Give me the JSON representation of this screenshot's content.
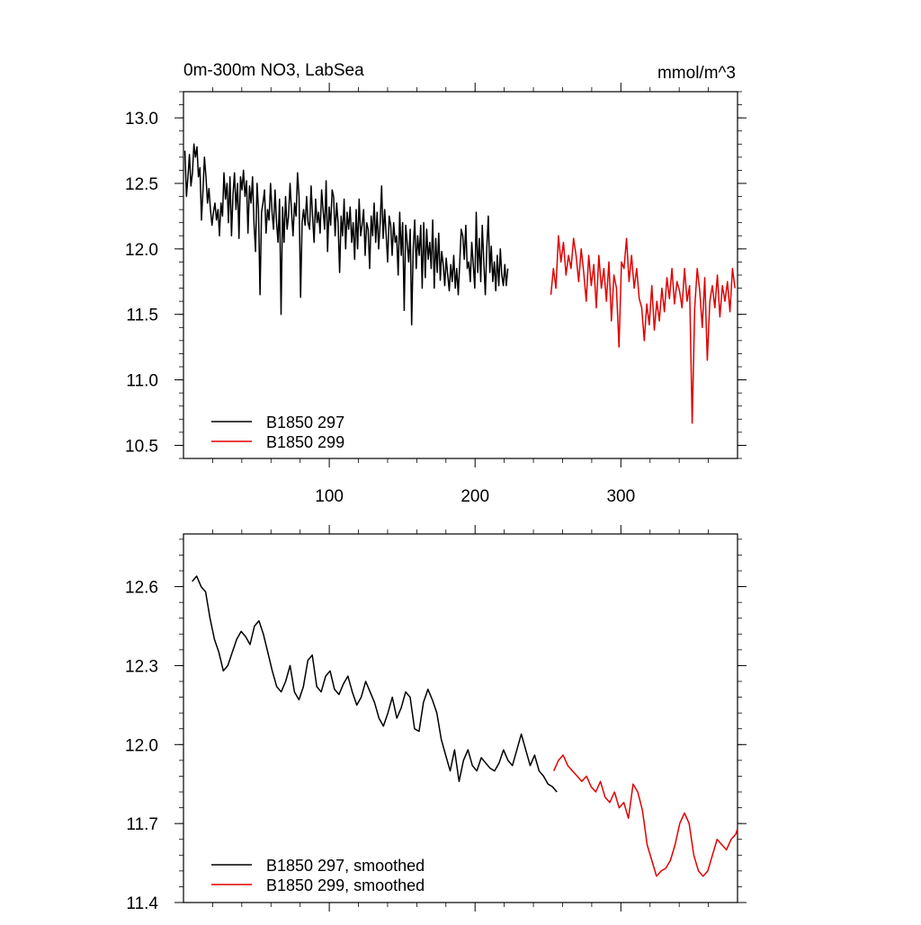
{
  "chart_data": [
    {
      "type": "line",
      "title": "0m-300m NO3, LabSea",
      "units": "mmol/m^3",
      "xlim": [
        0,
        380
      ],
      "ylim": [
        10.4,
        13.2
      ],
      "xticks": [
        100,
        200,
        300
      ],
      "xtick_labels": [
        "100",
        "200",
        "300"
      ],
      "yticks": [
        10.5,
        11.0,
        11.5,
        12.0,
        12.5,
        13.0
      ],
      "ytick_labels": [
        "10.5",
        "11.0",
        "11.5",
        "12.0",
        "12.5",
        "13.0"
      ],
      "legend_location": "bottom-left",
      "series": [
        {
          "name": "B1850 297",
          "color": "#000000",
          "x_start": 1,
          "values": [
            12.75,
            12.4,
            12.55,
            12.72,
            12.48,
            12.58,
            12.8,
            12.7,
            12.78,
            12.55,
            12.62,
            12.22,
            12.45,
            12.7,
            12.55,
            12.35,
            12.46,
            12.3,
            12.18,
            12.28,
            12.35,
            12.22,
            12.3,
            12.1,
            12.35,
            12.25,
            12.58,
            12.38,
            12.5,
            12.2,
            12.55,
            12.1,
            12.42,
            12.58,
            12.3,
            12.5,
            12.08,
            12.55,
            12.45,
            12.6,
            12.4,
            12.52,
            12.12,
            12.48,
            12.35,
            12.55,
            12.2,
            11.98,
            12.5,
            12.3,
            11.65,
            12.28,
            12.35,
            12.45,
            12.12,
            12.3,
            12.22,
            12.5,
            12.28,
            12.15,
            12.45,
            12.2,
            12.05,
            12.38,
            11.5,
            12.32,
            12.05,
            12.4,
            12.15,
            12.25,
            12.5,
            12.28,
            12.1,
            12.35,
            12.25,
            12.58,
            12.4,
            11.63,
            12.2,
            12.3,
            12.18,
            12.4,
            12.2,
            12.15,
            12.48,
            12.25,
            12.05,
            12.38,
            12.2,
            12.28,
            12.12,
            12.45,
            12.3,
            12.15,
            12.52,
            11.98,
            12.32,
            12.18,
            12.45,
            12.4,
            12.1,
            12.35,
            12.2,
            11.82,
            12.25,
            12.1,
            12.38,
            12.0,
            12.28,
            12.15,
            12.32,
            12.05,
            12.2,
            11.92,
            12.3,
            12.0,
            12.38,
            12.1,
            12.18,
            12.3,
            11.95,
            12.2,
            12.15,
            11.85,
            12.25,
            12.1,
            12.35,
            12.05,
            12.28,
            12.0,
            12.2,
            12.48,
            12.08,
            12.3,
            12.1,
            11.9,
            12.25,
            12.18,
            11.95,
            12.2,
            12.05,
            12.1,
            11.8,
            12.28,
            11.95,
            12.2,
            11.53,
            12.18,
            12.05,
            11.9,
            12.15,
            11.42,
            12.0,
            12.22,
            11.85,
            12.1,
            11.95,
            12.18,
            11.7,
            12.2,
            11.78,
            12.15,
            11.92,
            12.05,
            11.85,
            12.22,
            11.7,
            12.08,
            11.82,
            12.12,
            11.76,
            11.98,
            11.88,
            11.72,
            11.93,
            11.8,
            11.68,
            11.88,
            11.75,
            11.95,
            11.7,
            11.85,
            11.65,
            11.9,
            12.15,
            12.1,
            11.92,
            12.18,
            11.85,
            11.9,
            11.75,
            12.05,
            11.88,
            11.7,
            12.28,
            11.82,
            12.08,
            11.75,
            12.18,
            11.9,
            11.65,
            12.0,
            12.25,
            11.82,
            12.02,
            11.75,
            11.9,
            11.68,
            11.95,
            11.72,
            12.0,
            11.8,
            11.72,
            11.88,
            11.72,
            11.85
          ],
          "x_step": 1.03
        },
        {
          "name": "B1850 299",
          "color": "#e00000",
          "x_start": 252,
          "values": [
            11.65,
            11.85,
            11.7,
            12.1,
            11.9,
            12.05,
            11.8,
            11.95,
            11.85,
            12.08,
            11.95,
            11.75,
            12.0,
            11.82,
            11.6,
            11.95,
            11.72,
            11.88,
            11.55,
            11.95,
            11.7,
            11.85,
            11.6,
            11.9,
            11.45,
            11.8,
            11.7,
            11.25,
            11.9,
            11.85,
            12.08,
            11.75,
            11.95,
            11.7,
            11.85,
            11.62,
            11.55,
            11.3,
            11.58,
            11.42,
            11.72,
            11.38,
            11.6,
            11.45,
            11.7,
            11.52,
            11.78,
            11.62,
            11.85,
            11.58,
            11.75,
            11.68,
            11.55,
            11.85,
            11.6,
            11.72,
            10.67,
            11.55,
            11.85,
            11.68,
            11.4,
            11.78,
            11.15,
            11.6,
            11.72,
            11.55,
            11.8,
            11.48,
            11.72,
            11.6,
            11.75,
            11.52,
            11.85,
            11.7
          ],
          "x_step": 1.73
        }
      ]
    },
    {
      "type": "line",
      "title": "",
      "xlim": [
        0,
        380
      ],
      "ylim": [
        11.4,
        12.8
      ],
      "yticks": [
        11.4,
        11.7,
        12.0,
        12.3,
        12.6
      ],
      "ytick_labels": [
        "11.4",
        "11.7",
        "12.0",
        "12.3",
        "12.6"
      ],
      "legend_location": "bottom-left",
      "series": [
        {
          "name": "B1850 297, smoothed",
          "color": "#000000",
          "x_start": 6,
          "values": [
            12.62,
            12.64,
            12.6,
            12.58,
            12.48,
            12.4,
            12.35,
            12.28,
            12.3,
            12.35,
            12.4,
            12.43,
            12.41,
            12.38,
            12.45,
            12.47,
            12.42,
            12.35,
            12.28,
            12.22,
            12.2,
            12.24,
            12.3,
            12.2,
            12.17,
            12.22,
            12.32,
            12.34,
            12.22,
            12.2,
            12.26,
            12.28,
            12.21,
            12.19,
            12.23,
            12.26,
            12.2,
            12.15,
            12.18,
            12.24,
            12.2,
            12.16,
            12.1,
            12.07,
            12.12,
            12.18,
            12.1,
            12.14,
            12.2,
            12.18,
            12.06,
            12.05,
            12.16,
            12.21,
            12.17,
            12.12,
            12.02,
            11.96,
            11.9,
            11.98,
            11.86,
            11.94,
            11.98,
            11.92,
            11.9,
            11.95,
            11.93,
            11.91,
            11.9,
            11.93,
            11.98,
            11.94,
            11.92,
            11.98,
            12.04,
            11.98,
            11.92,
            11.96,
            11.9,
            11.88,
            11.85,
            11.84,
            11.82
          ],
          "x_step": 3.05
        },
        {
          "name": "B1850 299, smoothed",
          "color": "#e00000",
          "x_start": 254,
          "values": [
            11.9,
            11.94,
            11.96,
            11.92,
            11.9,
            11.88,
            11.86,
            11.88,
            11.84,
            11.82,
            11.86,
            11.8,
            11.78,
            11.82,
            11.76,
            11.78,
            11.72,
            11.85,
            11.82,
            11.75,
            11.62,
            11.56,
            11.5,
            11.52,
            11.53,
            11.56,
            11.62,
            11.7,
            11.74,
            11.7,
            11.58,
            11.52,
            11.5,
            11.52,
            11.58,
            11.64,
            11.62,
            11.6,
            11.64,
            11.66,
            11.68
          ],
          "x_step": 3.2
        }
      ]
    }
  ]
}
